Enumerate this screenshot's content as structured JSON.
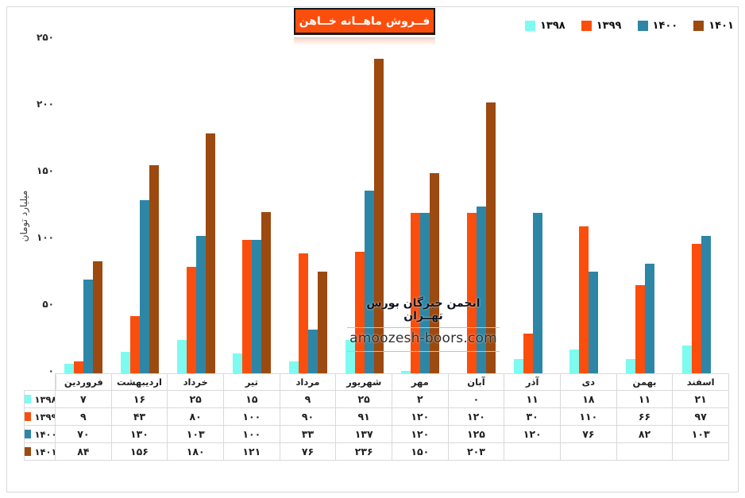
{
  "title": {
    "text": "فــروش ماهــانه خــاهن"
  },
  "watermark": {
    "line1": "انجمن خبرگان بورس تهــران",
    "line2": "amoozesh-boors.com"
  },
  "y_axis": {
    "label": "میلیارد تومان",
    "ticks": [
      {
        "value": 0,
        "label": "۰"
      },
      {
        "value": 50,
        "label": "۵۰"
      },
      {
        "value": 100,
        "label": "۱۰۰"
      },
      {
        "value": 150,
        "label": "۱۵۰"
      },
      {
        "value": 200,
        "label": "۲۰۰"
      },
      {
        "value": 250,
        "label": "۲۵۰"
      }
    ]
  },
  "colors": {
    "series_1398": "#7dfbf1",
    "series_1399": "#fb4e0d",
    "series_1400": "#2e86a6",
    "series_1401": "#9c4a10",
    "title_background": "#fb4e0d",
    "table_border": "#d9d9d9"
  },
  "chart_data": {
    "type": "bar",
    "title": "فــروش ماهــانه خــاهن",
    "xlabel": "",
    "ylabel": "میلیارد تومان",
    "ylim": [
      0,
      250
    ],
    "yticks": [
      0,
      50,
      100,
      150,
      200,
      250
    ],
    "grid": false,
    "legend_position": "top-right",
    "categories": [
      "فروردین",
      "اردیبهشت",
      "خرداد",
      "تیر",
      "مرداد",
      "شهریور",
      "مهر",
      "آبان",
      "آذر",
      "دی",
      "بهمن",
      "اسفند"
    ],
    "series": [
      {
        "name": "۱۳۹۸",
        "color": "#7dfbf1",
        "values": [
          7,
          16,
          25,
          15,
          9,
          25,
          2,
          0,
          11,
          18,
          11,
          21
        ],
        "display_values": [
          "۷",
          "۱۶",
          "۲۵",
          "۱۵",
          "۹",
          "۲۵",
          "۲",
          "۰",
          "۱۱",
          "۱۸",
          "۱۱",
          "۲۱"
        ]
      },
      {
        "name": "۱۳۹۹",
        "color": "#fb4e0d",
        "values": [
          9,
          43,
          80,
          100,
          90,
          91,
          120,
          120,
          30,
          110,
          66,
          97
        ],
        "display_values": [
          "۹",
          "۴۳",
          "۸۰",
          "۱۰۰",
          "۹۰",
          "۹۱",
          "۱۲۰",
          "۱۲۰",
          "۳۰",
          "۱۱۰",
          "۶۶",
          "۹۷"
        ]
      },
      {
        "name": "۱۴۰۰",
        "color": "#2e86a6",
        "values": [
          70,
          130,
          103,
          100,
          33,
          137,
          120,
          125,
          120,
          76,
          82,
          103
        ],
        "display_values": [
          "۷۰",
          "۱۳۰",
          "۱۰۳",
          "۱۰۰",
          "۳۳",
          "۱۳۷",
          "۱۲۰",
          "۱۲۵",
          "۱۲۰",
          "۷۶",
          "۸۲",
          "۱۰۳"
        ]
      },
      {
        "name": "۱۴۰۱",
        "color": "#9c4a10",
        "values": [
          84,
          156,
          180,
          121,
          76,
          236,
          150,
          203,
          null,
          null,
          null,
          null
        ],
        "display_values": [
          "۸۴",
          "۱۵۶",
          "۱۸۰",
          "۱۲۱",
          "۷۶",
          "۲۳۶",
          "۱۵۰",
          "۲۰۳",
          "",
          "",
          "",
          ""
        ]
      }
    ]
  }
}
